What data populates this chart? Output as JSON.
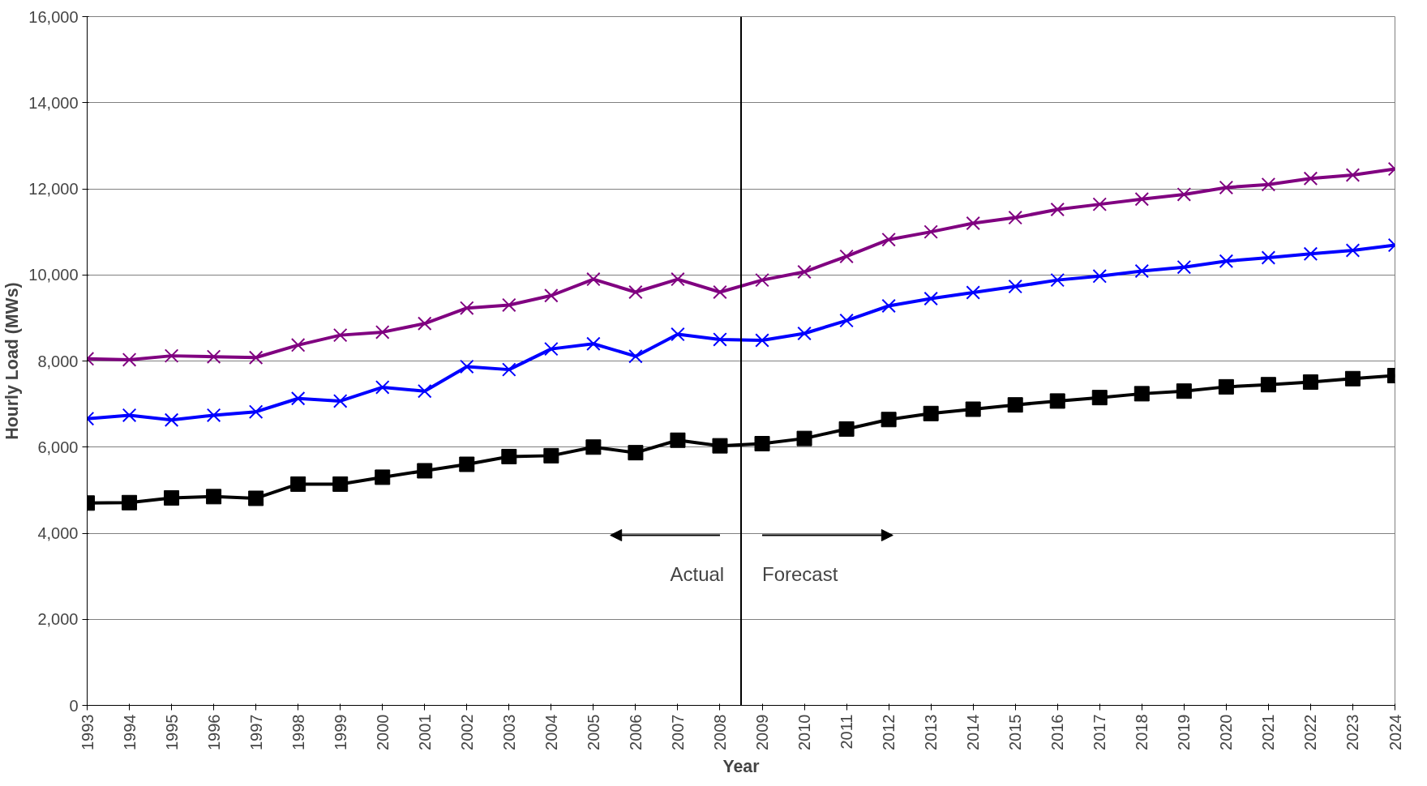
{
  "chart_data": {
    "type": "line",
    "xlabel": "Year",
    "ylabel": "Hourly Load (MWs)",
    "x": [
      1993,
      1994,
      1995,
      1996,
      1997,
      1998,
      1999,
      2000,
      2001,
      2002,
      2003,
      2004,
      2005,
      2006,
      2007,
      2008,
      2009,
      2010,
      2011,
      2012,
      2013,
      2014,
      2015,
      2016,
      2017,
      2018,
      2019,
      2020,
      2021,
      2022,
      2023,
      2024
    ],
    "series": [
      {
        "color": "#800080",
        "marker": "cross",
        "values": [
          8050,
          8030,
          8120,
          8100,
          8080,
          8370,
          8600,
          8670,
          8870,
          9230,
          9300,
          9520,
          9900,
          9600,
          9900,
          9600,
          9880,
          10070,
          10430,
          10820,
          11000,
          11200,
          11330,
          11520,
          11640,
          11760,
          11870,
          12030,
          12100,
          12240,
          12320,
          12460
        ]
      },
      {
        "color": "#0000ff",
        "marker": "cross",
        "values": [
          6660,
          6740,
          6630,
          6740,
          6820,
          7130,
          7070,
          7390,
          7300,
          7870,
          7800,
          8280,
          8400,
          8110,
          8620,
          8500,
          8480,
          8640,
          8940,
          9280,
          9450,
          9590,
          9730,
          9880,
          9970,
          10090,
          10180,
          10320,
          10400,
          10490,
          10570,
          10690
        ]
      },
      {
        "color": "#000000",
        "marker": "square",
        "values": [
          4700,
          4710,
          4820,
          4850,
          4810,
          5140,
          5140,
          5300,
          5450,
          5600,
          5780,
          5800,
          6000,
          5870,
          6160,
          6030,
          6080,
          6200,
          6420,
          6640,
          6780,
          6880,
          6980,
          7070,
          7150,
          7240,
          7300,
          7400,
          7450,
          7510,
          7590,
          7660
        ]
      }
    ],
    "xlim": [
      1993,
      2024
    ],
    "xticks": [
      1993,
      1994,
      1995,
      1996,
      1997,
      1998,
      1999,
      2000,
      2001,
      2002,
      2003,
      2004,
      2005,
      2006,
      2007,
      2008,
      2009,
      2010,
      2011,
      2012,
      2013,
      2014,
      2015,
      2016,
      2017,
      2018,
      2019,
      2020,
      2021,
      2022,
      2023,
      2024
    ],
    "ylim": [
      0,
      16000
    ],
    "yticks": [
      {
        "value": 0,
        "label": "0"
      },
      {
        "value": 2000,
        "label": "2,000"
      },
      {
        "value": 4000,
        "label": "4,000"
      },
      {
        "value": 6000,
        "label": "6,000"
      },
      {
        "value": 8000,
        "label": "8,000"
      },
      {
        "value": 10000,
        "label": "10,000"
      },
      {
        "value": 12000,
        "label": "12,000"
      },
      {
        "value": 14000,
        "label": "14,000"
      },
      {
        "value": 16000,
        "label": "16,000"
      }
    ],
    "ref_lines": [
      {
        "axis": "x",
        "value": 2008.5,
        "color": "#000000"
      }
    ],
    "annotations": [
      "Actual",
      "Forecast"
    ],
    "grid": "y",
    "line_style": "solid"
  }
}
